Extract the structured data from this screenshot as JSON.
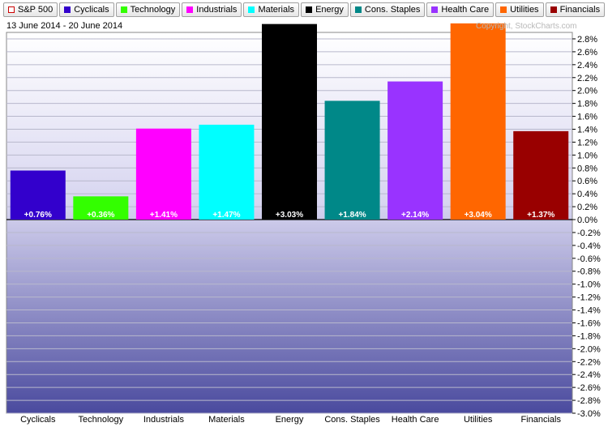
{
  "legend": {
    "items": [
      {
        "label": "S&P 500",
        "color": "#ffffff",
        "border": "#cc0000"
      },
      {
        "label": "Cyclicals",
        "color": "#3300cc"
      },
      {
        "label": "Technology",
        "color": "#33ff00"
      },
      {
        "label": "Industrials",
        "color": "#ff00ff"
      },
      {
        "label": "Materials",
        "color": "#00ffff"
      },
      {
        "label": "Energy",
        "color": "#000000"
      },
      {
        "label": "Cons. Staples",
        "color": "#008888"
      },
      {
        "label": "Health Care",
        "color": "#9933ff"
      },
      {
        "label": "Utilities",
        "color": "#ff6600"
      },
      {
        "label": "Financials",
        "color": "#990000"
      }
    ]
  },
  "date_range": "13 June 2014 - 20 June 2014",
  "copyright": "Copyright, StockCharts.com",
  "chart_data": {
    "type": "bar",
    "categories": [
      "Cyclicals",
      "Technology",
      "Industrials",
      "Materials",
      "Energy",
      "Cons. Staples",
      "Health Care",
      "Utilities",
      "Financials"
    ],
    "values": [
      0.76,
      0.36,
      1.41,
      1.47,
      3.03,
      1.84,
      2.14,
      3.04,
      1.37
    ],
    "data_labels": [
      "+0.76%",
      "+0.36%",
      "+1.41%",
      "+1.47%",
      "+3.03%",
      "+1.84%",
      "+2.14%",
      "+3.04%",
      "+1.37%"
    ],
    "colors": [
      "#3300cc",
      "#33ff00",
      "#ff00ff",
      "#00ffff",
      "#000000",
      "#008888",
      "#9933ff",
      "#ff6600",
      "#990000"
    ],
    "ylim": [
      -3.0,
      2.9
    ],
    "yticks": [
      2.8,
      2.6,
      2.4,
      2.2,
      2.0,
      1.8,
      1.6,
      1.4,
      1.2,
      1.0,
      0.8,
      0.6,
      0.4,
      0.2,
      0.0,
      -0.2,
      -0.4,
      -0.6,
      -0.8,
      -1.0,
      -1.2,
      -1.4,
      -1.6,
      -1.8,
      -2.0,
      -2.2,
      -2.4,
      -2.6,
      -2.8,
      -3.0
    ],
    "ytick_labels": [
      "2.8%",
      "2.6%",
      "2.4%",
      "2.2%",
      "2.0%",
      "1.8%",
      "1.6%",
      "1.4%",
      "1.2%",
      "1.0%",
      "0.8%",
      "0.6%",
      "0.4%",
      "0.2%",
      "0.0%",
      "-0.2%",
      "-0.4%",
      "-0.6%",
      "-0.8%",
      "-1.0%",
      "-1.2%",
      "-1.4%",
      "-1.6%",
      "-1.8%",
      "-2.0%",
      "-2.2%",
      "-2.4%",
      "-2.6%",
      "-2.8%",
      "-3.0%"
    ],
    "xlabel": "",
    "ylabel": "",
    "y_axis_side": "right",
    "grid": true
  }
}
